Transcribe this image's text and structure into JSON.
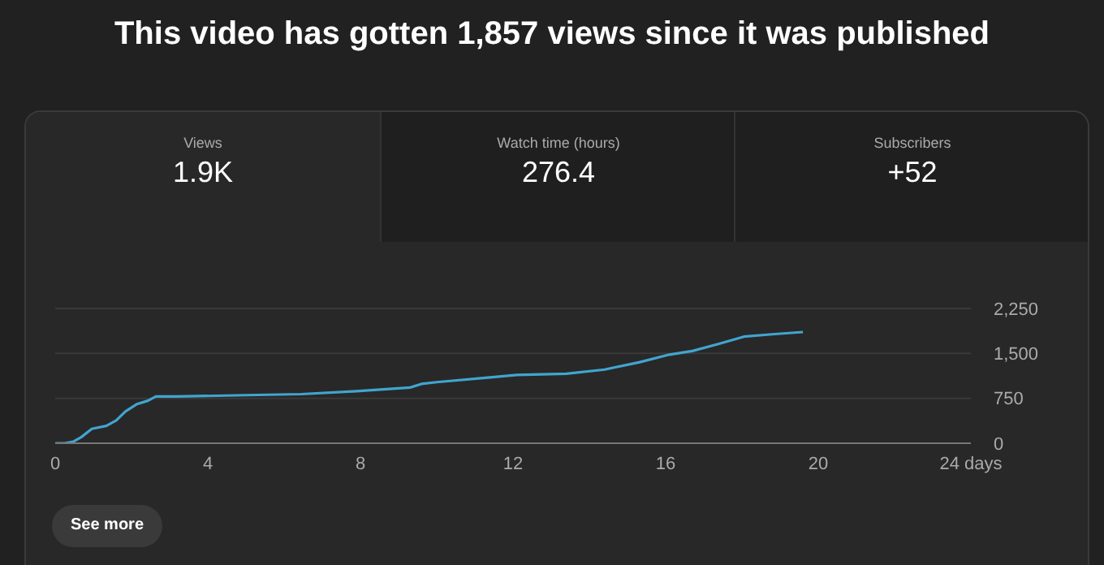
{
  "chart_data": {
    "type": "line",
    "title": "This video has gotten 1,857 views since it was published",
    "annotations": [
      "Views",
      "1.9K",
      "Watch time (hours)",
      "276.4",
      "Subscribers",
      "+52",
      "See more"
    ],
    "x": [
      0,
      0.25,
      0.47,
      0.68,
      0.96,
      1.34,
      1.6,
      1.84,
      2.13,
      2.43,
      2.64,
      3.2,
      4.75,
      6.45,
      7.9,
      9.3,
      9.6,
      10,
      11.4,
      12.1,
      13.4,
      14.4,
      15.3,
      16.1,
      16.7,
      17.4,
      18.05,
      18.8,
      19.6
    ],
    "series": [
      {
        "color": "#41a5cf",
        "values": [
          0,
          0,
          25,
          100,
          240,
          290,
          380,
          530,
          650,
          710,
          780,
          780,
          800,
          820,
          870,
          930,
          990,
          1020,
          1100,
          1140,
          1160,
          1230,
          1350,
          1480,
          1540,
          1660,
          1780,
          1820,
          1857
        ]
      }
    ],
    "xlim": [
      0,
      24
    ],
    "xticks": [
      0,
      4,
      8,
      12,
      16,
      20,
      {
        "value": 24,
        "label": "24 days"
      }
    ],
    "ylim": [
      0,
      2250
    ],
    "yticks": [
      0,
      {
        "value": 750,
        "label": "750"
      },
      {
        "value": 1500,
        "label": "1,500"
      },
      {
        "value": 2250,
        "label": "2,250"
      }
    ],
    "grid": "y",
    "marker": "none",
    "line_style": "solid"
  }
}
